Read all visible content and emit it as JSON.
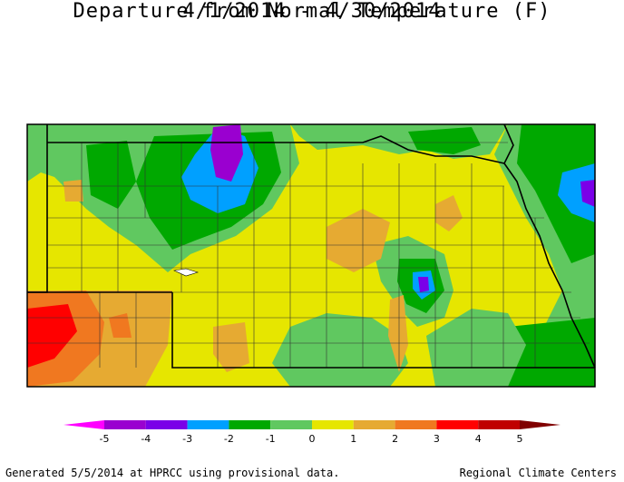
{
  "title_line1": "Departure from Normal Temperature (F)",
  "title_line2": "4/1/2014 - 4/30/2014",
  "legend": {
    "ticks": [
      "-5",
      "-4",
      "-3",
      "-2",
      "-1",
      "0",
      "1",
      "2",
      "3",
      "4",
      "5"
    ],
    "colors": [
      "#ff00ff",
      "#9a00d0",
      "#7a00e8",
      "#00a0ff",
      "#00a800",
      "#60c860",
      "#e6e600",
      "#e6aa32",
      "#f07820",
      "#ff0000",
      "#c00000",
      "#800000"
    ]
  },
  "footer_left": "Generated 5/5/2014 at HPRCC using provisional data.",
  "footer_right": "Regional Climate Centers"
}
